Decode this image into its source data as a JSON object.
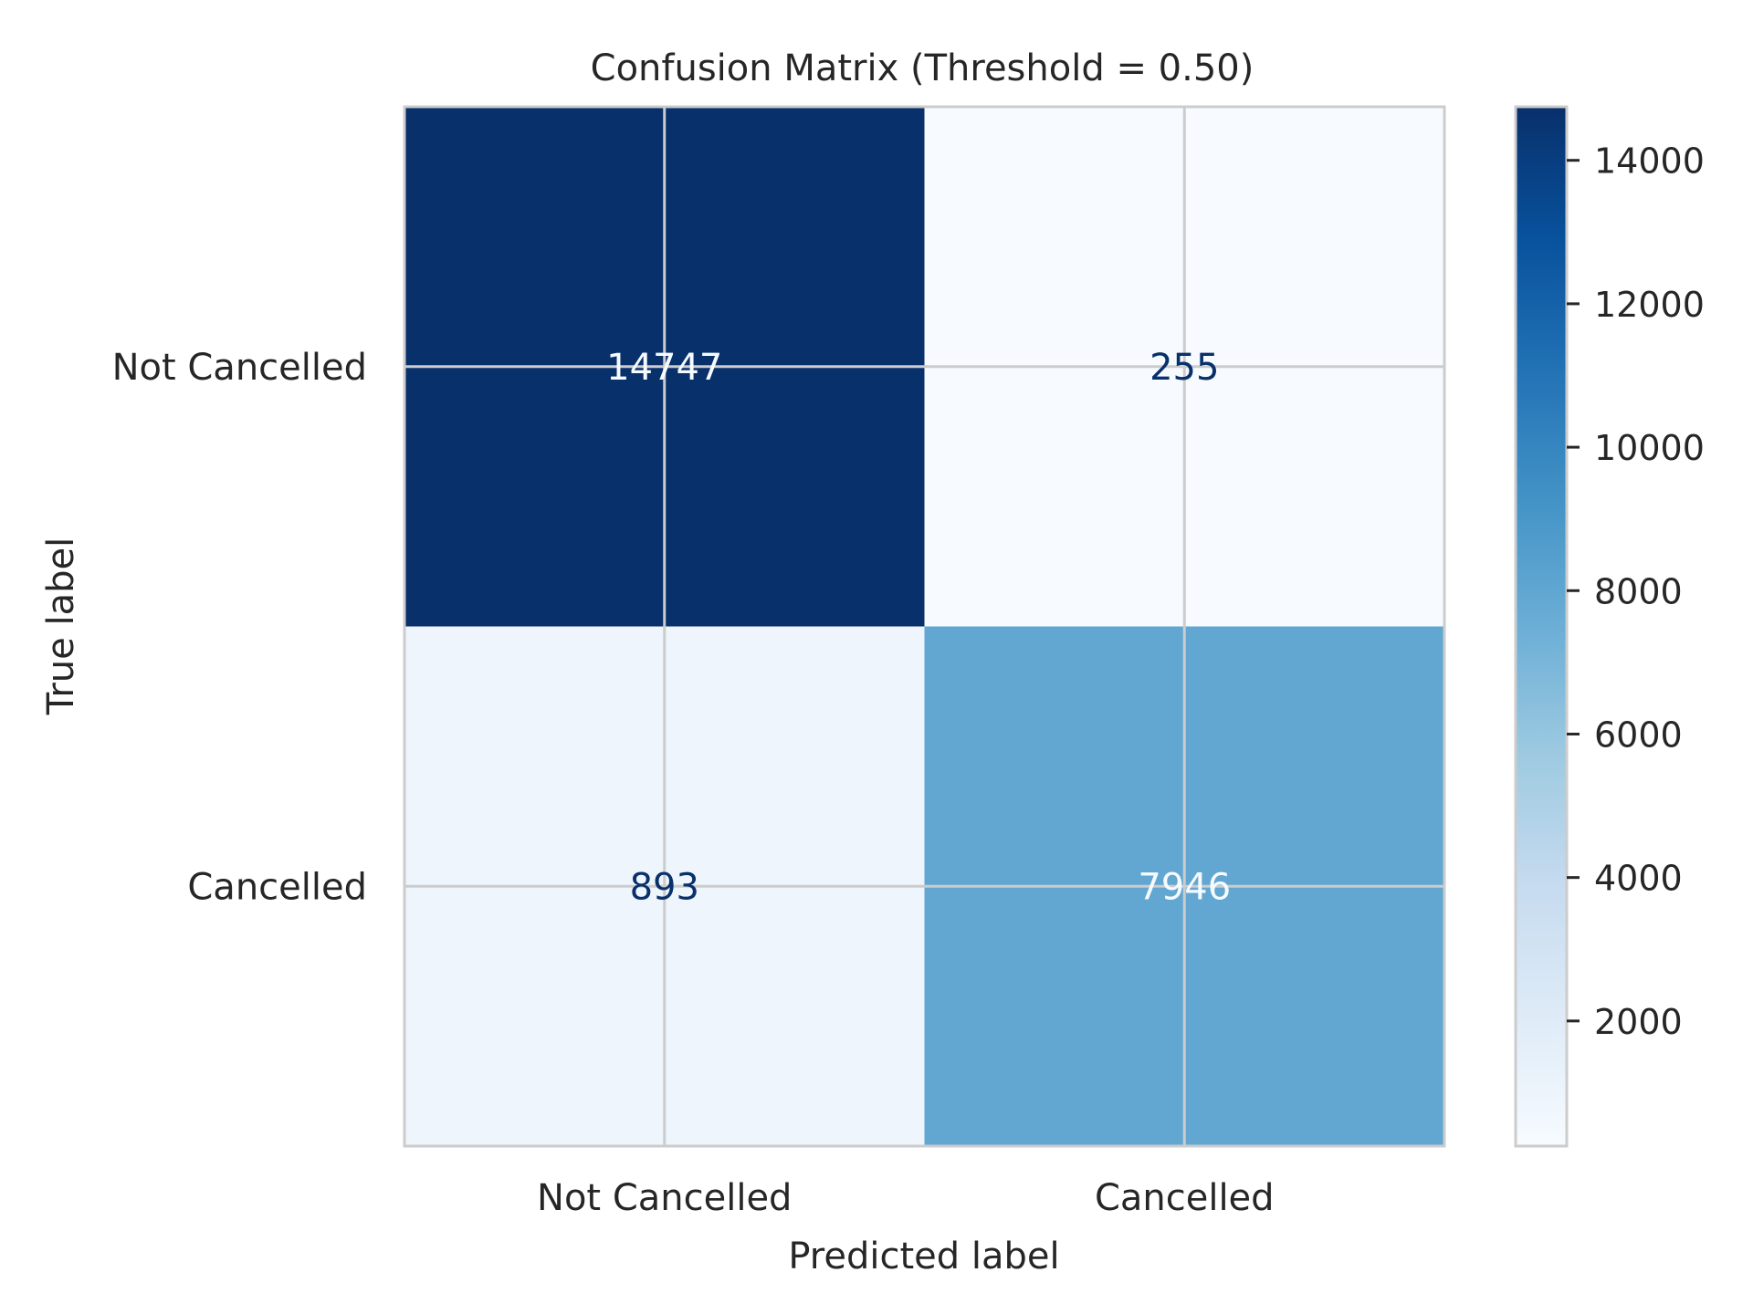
{
  "chart_data": {
    "type": "heatmap",
    "title": "Confusion Matrix (Threshold = 0.50)",
    "xlabel": "Predicted label",
    "ylabel": "True label",
    "x_categories": [
      "Not Cancelled",
      "Cancelled"
    ],
    "y_categories": [
      "Not Cancelled",
      "Cancelled"
    ],
    "values": [
      [
        14747,
        255
      ],
      [
        893,
        7946
      ]
    ],
    "colormap": "Blues",
    "color_range": [
      255,
      14747
    ],
    "colorbar_ticks": [
      2000,
      4000,
      6000,
      8000,
      10000,
      12000,
      14000
    ],
    "grid": true
  },
  "colors": {
    "text": "#262626",
    "grid": "#cccccc",
    "frame": "#cccccc"
  }
}
